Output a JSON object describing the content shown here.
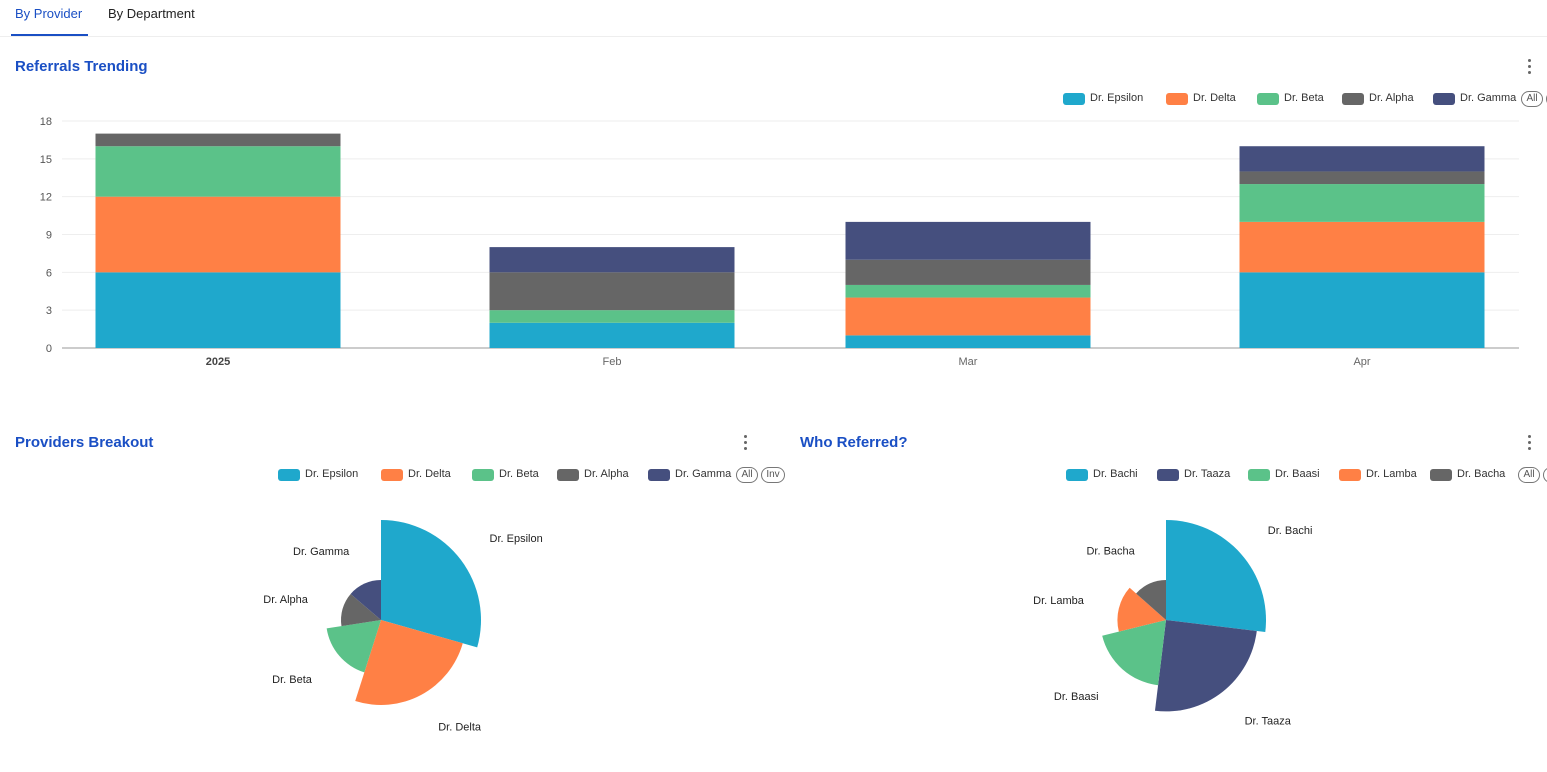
{
  "tabs": [
    {
      "label": "By Provider",
      "active": true
    },
    {
      "label": "By Department",
      "active": false
    }
  ],
  "legend_controls": {
    "all": "All",
    "inv": "Inv"
  },
  "colors": {
    "accent": "#1a4fc4",
    "Dr. Epsilon": "#1fa8cc",
    "Dr. Delta": "#ff8045",
    "Dr. Beta": "#5bc289",
    "Dr. Alpha": "#666666",
    "Dr. Gamma": "#454f7e",
    "Dr. Bachi": "#1fa8cc",
    "Dr. Taaza": "#454f7e",
    "Dr. Baasi": "#5bc289",
    "Dr. Lamba": "#ff8045",
    "Dr. Bacha": "#666666"
  },
  "chart_data": [
    {
      "type": "bar",
      "stacked": true,
      "title": "Referrals Trending",
      "categories": [
        "2025",
        "Feb",
        "Mar",
        "Apr"
      ],
      "series": [
        {
          "name": "Dr. Epsilon",
          "values": [
            6,
            2,
            1,
            6
          ]
        },
        {
          "name": "Dr. Delta",
          "values": [
            6,
            0,
            3,
            4
          ]
        },
        {
          "name": "Dr. Beta",
          "values": [
            4,
            1,
            1,
            3
          ]
        },
        {
          "name": "Dr. Alpha",
          "values": [
            1,
            3,
            2,
            1
          ]
        },
        {
          "name": "Dr. Gamma",
          "values": [
            0,
            2,
            3,
            2
          ]
        }
      ],
      "yticks": [
        0,
        3,
        6,
        9,
        12,
        15,
        18
      ],
      "ylim": [
        0,
        18
      ],
      "grid": true,
      "legend": "top-right"
    },
    {
      "type": "pie",
      "variant": "nightingale-rose",
      "title": "Providers Breakout",
      "slices": [
        {
          "name": "Dr. Epsilon",
          "value": 15
        },
        {
          "name": "Dr. Delta",
          "value": 13
        },
        {
          "name": "Dr. Beta",
          "value": 9
        },
        {
          "name": "Dr. Alpha",
          "value": 7
        },
        {
          "name": "Dr. Gamma",
          "value": 7
        }
      ],
      "legend": "top"
    },
    {
      "type": "pie",
      "variant": "nightingale-rose",
      "title": "Who Referred?",
      "slices": [
        {
          "name": "Dr. Bachi",
          "value": 14
        },
        {
          "name": "Dr. Taaza",
          "value": 13
        },
        {
          "name": "Dr. Baasi",
          "value": 10
        },
        {
          "name": "Dr. Lamba",
          "value": 8
        },
        {
          "name": "Dr. Bacha",
          "value": 7
        }
      ],
      "legend": "top"
    }
  ]
}
